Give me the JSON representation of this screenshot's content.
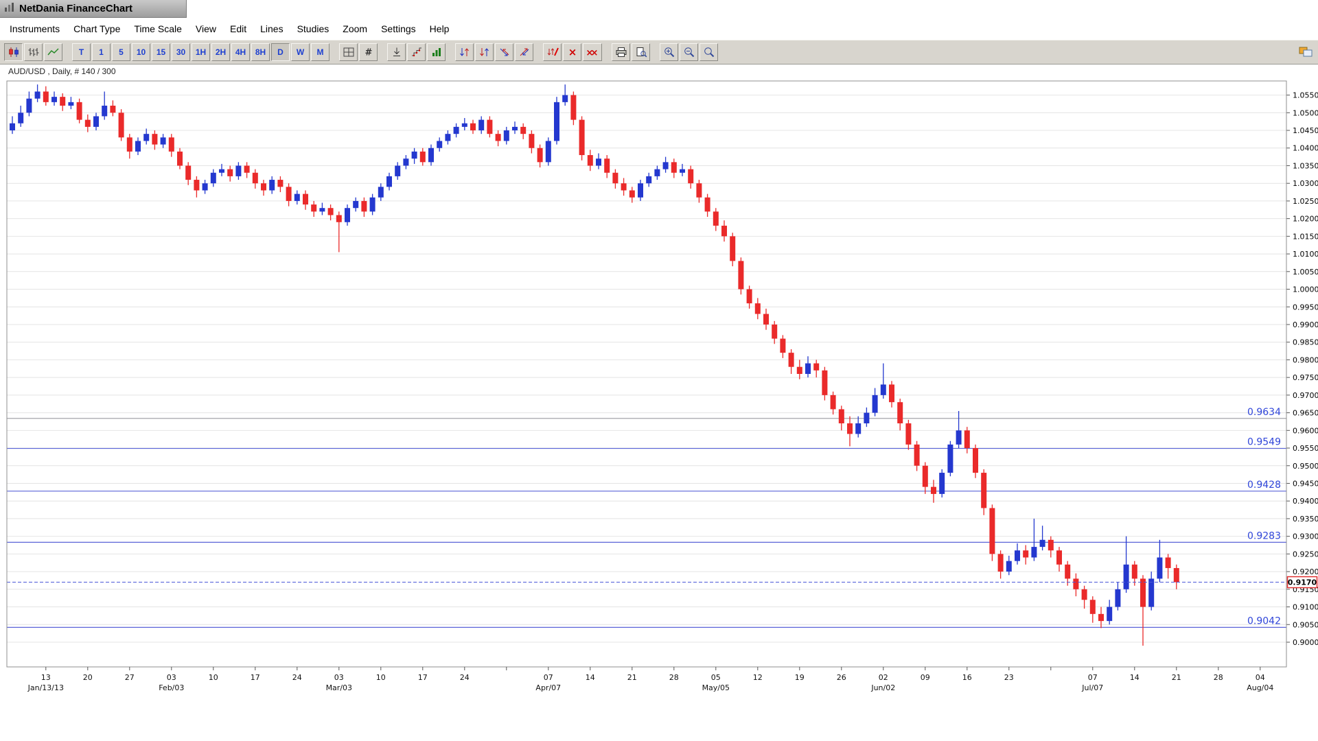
{
  "window": {
    "title": "NetDania FinanceChart"
  },
  "menu": {
    "items": [
      "Instruments",
      "Chart Type",
      "Time Scale",
      "View",
      "Edit",
      "Lines",
      "Studies",
      "Zoom",
      "Settings",
      "Help"
    ]
  },
  "toolbar": {
    "buttons": [
      {
        "name": "candlestick-chart-icon",
        "selected": true
      },
      {
        "name": "ohlc-bars-icon"
      },
      {
        "name": "line-chart-icon"
      },
      {
        "name": "timeframe-T-button",
        "label": "T",
        "gap": true
      },
      {
        "name": "timeframe-1-button",
        "label": "1"
      },
      {
        "name": "timeframe-5-button",
        "label": "5"
      },
      {
        "name": "timeframe-10-button",
        "label": "10"
      },
      {
        "name": "timeframe-15-button",
        "label": "15"
      },
      {
        "name": "timeframe-30-button",
        "label": "30"
      },
      {
        "name": "timeframe-1H-button",
        "label": "1H"
      },
      {
        "name": "timeframe-2H-button",
        "label": "2H"
      },
      {
        "name": "timeframe-4H-button",
        "label": "4H"
      },
      {
        "name": "timeframe-8H-button",
        "label": "8H"
      },
      {
        "name": "timeframe-D-button",
        "label": "D",
        "selected": true
      },
      {
        "name": "timeframe-W-button",
        "label": "W"
      },
      {
        "name": "timeframe-M-button",
        "label": "M"
      },
      {
        "name": "grid-icon",
        "gap": true
      },
      {
        "name": "hash-icon"
      },
      {
        "name": "marker-icon",
        "gap": true
      },
      {
        "name": "steps-icon"
      },
      {
        "name": "studies-bars-icon"
      },
      {
        "name": "arrows-icon-1",
        "gap": true
      },
      {
        "name": "arrows-icon-2"
      },
      {
        "name": "arrows-icon-3"
      },
      {
        "name": "arrows-icon-4"
      },
      {
        "name": "remove-arrows-icon",
        "gap": true
      },
      {
        "name": "delete-cross-icon"
      },
      {
        "name": "delete-all-icon"
      },
      {
        "name": "print-icon",
        "gap": true
      },
      {
        "name": "print-preview-icon"
      },
      {
        "name": "zoom-in-icon",
        "gap": true
      },
      {
        "name": "zoom-out-icon"
      },
      {
        "name": "zoom-reset-icon"
      }
    ]
  },
  "chart": {
    "label": "AUD/USD , Daily, # 140 / 300"
  },
  "chart_data": {
    "type": "candlestick",
    "title": "AUD/USD Daily",
    "symbol": "AUD/USD",
    "interval": "Daily",
    "bars_shown": "# 140 / 300",
    "up_color": "#2438cf",
    "down_color": "#ea2a2a",
    "grid_color": "#e4e4e4",
    "ylim": [
      0.893,
      1.059
    ],
    "y_axis": {
      "tick_step": 0.005,
      "labels": [
        "1.0550",
        "1.0500",
        "1.0450",
        "1.0400",
        "1.0350",
        "1.0300",
        "1.0250",
        "1.0200",
        "1.0150",
        "1.0100",
        "1.0050",
        "1.0000",
        "0.9950",
        "0.9900",
        "0.9850",
        "0.9800",
        "0.9750",
        "0.9700",
        "0.9650",
        "0.9600",
        "0.9550",
        "0.9500",
        "0.9450",
        "0.9400",
        "0.9350",
        "0.9300",
        "0.9250",
        "0.9200",
        "0.9150",
        "0.9100",
        "0.9050",
        "0.9000"
      ]
    },
    "x_axis": {
      "day_labels": [
        {
          "t": "13",
          "i": 4
        },
        {
          "t": "20",
          "i": 9
        },
        {
          "t": "27",
          "i": 14
        },
        {
          "t": "03",
          "i": 19
        },
        {
          "t": "10",
          "i": 24
        },
        {
          "t": "17",
          "i": 29
        },
        {
          "t": "24",
          "i": 34
        },
        {
          "t": "03",
          "i": 39
        },
        {
          "t": "10",
          "i": 44
        },
        {
          "t": "17",
          "i": 49
        },
        {
          "t": "24",
          "i": 54
        },
        {
          "t": "07",
          "i": 64
        },
        {
          "t": "14",
          "i": 69
        },
        {
          "t": "21",
          "i": 74
        },
        {
          "t": "28",
          "i": 79
        },
        {
          "t": "05",
          "i": 84
        },
        {
          "t": "12",
          "i": 89
        },
        {
          "t": "19",
          "i": 94
        },
        {
          "t": "26",
          "i": 99
        },
        {
          "t": "02",
          "i": 104
        },
        {
          "t": "09",
          "i": 109
        },
        {
          "t": "16",
          "i": 114
        },
        {
          "t": "23",
          "i": 119
        },
        {
          "t": "07",
          "i": 129
        },
        {
          "t": "14",
          "i": 134
        },
        {
          "t": "21",
          "i": 139
        },
        {
          "t": "28",
          "i": 144
        },
        {
          "t": "04",
          "i": 149
        }
      ],
      "month_labels": [
        {
          "t": "Jan/13/13",
          "i": 4
        },
        {
          "t": "Feb/03",
          "i": 19
        },
        {
          "t": "Mar/03",
          "i": 39
        },
        {
          "t": "Apr/07",
          "i": 64
        },
        {
          "t": "May/05",
          "i": 84
        },
        {
          "t": "Jun/02",
          "i": 104
        },
        {
          "t": "Jul/07",
          "i": 129
        },
        {
          "t": "Aug/04",
          "i": 149
        }
      ]
    },
    "support_lines": [
      {
        "value": 0.9634,
        "label": "0.9634",
        "line_color": "#9a9aa0",
        "label_color": "#2f45d9"
      },
      {
        "value": 0.9549,
        "label": "0.9549",
        "line_color": "#5a63d8",
        "label_color": "#2f45d9"
      },
      {
        "value": 0.9428,
        "label": "0.9428",
        "line_color": "#5a63d8",
        "label_color": "#2f45d9"
      },
      {
        "value": 0.9283,
        "label": "0.9283",
        "line_color": "#5a63d8",
        "label_color": "#2f45d9"
      },
      {
        "value": 0.9042,
        "label": "0.9042",
        "line_color": "#5a63d8",
        "label_color": "#2f45d9"
      }
    ],
    "current_price": {
      "value": 0.917,
      "label": "0.9170",
      "line_color": "#4a57d8",
      "tag_border": "#e03030"
    },
    "candles": [
      [
        1.045,
        1.049,
        1.044,
        1.047
      ],
      [
        1.047,
        1.052,
        1.046,
        1.05
      ],
      [
        1.05,
        1.056,
        1.049,
        1.054
      ],
      [
        1.054,
        1.058,
        1.053,
        1.056
      ],
      [
        1.056,
        1.0575,
        1.052,
        1.053
      ],
      [
        1.053,
        1.056,
        1.052,
        1.0545
      ],
      [
        1.0545,
        1.0555,
        1.0505,
        1.052
      ],
      [
        1.052,
        1.0545,
        1.051,
        1.053
      ],
      [
        1.053,
        1.054,
        1.047,
        1.048
      ],
      [
        1.048,
        1.0495,
        1.0445,
        1.046
      ],
      [
        1.046,
        1.05,
        1.045,
        1.049
      ],
      [
        1.049,
        1.056,
        1.048,
        1.052
      ],
      [
        1.052,
        1.0535,
        1.049,
        1.05
      ],
      [
        1.05,
        1.051,
        1.042,
        1.043
      ],
      [
        1.043,
        1.044,
        1.037,
        1.039
      ],
      [
        1.039,
        1.043,
        1.038,
        1.042
      ],
      [
        1.042,
        1.0455,
        1.041,
        1.044
      ],
      [
        1.044,
        1.045,
        1.0395,
        1.041
      ],
      [
        1.041,
        1.044,
        1.04,
        1.043
      ],
      [
        1.043,
        1.044,
        1.0375,
        1.039
      ],
      [
        1.039,
        1.04,
        1.034,
        1.035
      ],
      [
        1.035,
        1.036,
        1.0295,
        1.031
      ],
      [
        1.031,
        1.032,
        1.026,
        1.028
      ],
      [
        1.028,
        1.031,
        1.027,
        1.03
      ],
      [
        1.03,
        1.034,
        1.029,
        1.033
      ],
      [
        1.033,
        1.0355,
        1.032,
        1.034
      ],
      [
        1.034,
        1.035,
        1.0305,
        1.032
      ],
      [
        1.032,
        1.036,
        1.031,
        1.035
      ],
      [
        1.035,
        1.036,
        1.0315,
        1.033
      ],
      [
        1.033,
        1.034,
        1.0285,
        1.03
      ],
      [
        1.03,
        1.031,
        1.0265,
        1.028
      ],
      [
        1.028,
        1.032,
        1.027,
        1.031
      ],
      [
        1.031,
        1.032,
        1.0275,
        1.029
      ],
      [
        1.029,
        1.03,
        1.0235,
        1.025
      ],
      [
        1.025,
        1.028,
        1.024,
        1.027
      ],
      [
        1.027,
        1.028,
        1.0225,
        1.024
      ],
      [
        1.024,
        1.025,
        1.0205,
        1.022
      ],
      [
        1.022,
        1.0245,
        1.021,
        1.023
      ],
      [
        1.023,
        1.024,
        1.0195,
        1.021
      ],
      [
        1.021,
        1.022,
        1.0105,
        1.019
      ],
      [
        1.019,
        1.024,
        1.018,
        1.023
      ],
      [
        1.023,
        1.026,
        1.022,
        1.025
      ],
      [
        1.025,
        1.026,
        1.0205,
        1.022
      ],
      [
        1.022,
        1.027,
        1.021,
        1.026
      ],
      [
        1.026,
        1.03,
        1.025,
        1.029
      ],
      [
        1.029,
        1.033,
        1.028,
        1.032
      ],
      [
        1.032,
        1.036,
        1.031,
        1.035
      ],
      [
        1.035,
        1.038,
        1.034,
        1.037
      ],
      [
        1.037,
        1.04,
        1.0355,
        1.039
      ],
      [
        1.039,
        1.04,
        1.035,
        1.036
      ],
      [
        1.036,
        1.041,
        1.035,
        1.04
      ],
      [
        1.04,
        1.043,
        1.039,
        1.042
      ],
      [
        1.042,
        1.045,
        1.041,
        1.044
      ],
      [
        1.044,
        1.047,
        1.043,
        1.046
      ],
      [
        1.046,
        1.0485,
        1.045,
        1.047
      ],
      [
        1.047,
        1.048,
        1.044,
        1.045
      ],
      [
        1.045,
        1.049,
        1.044,
        1.048
      ],
      [
        1.048,
        1.049,
        1.043,
        1.044
      ],
      [
        1.044,
        1.045,
        1.0405,
        1.042
      ],
      [
        1.042,
        1.046,
        1.041,
        1.045
      ],
      [
        1.045,
        1.0475,
        1.044,
        1.046
      ],
      [
        1.046,
        1.047,
        1.0425,
        1.044
      ],
      [
        1.044,
        1.045,
        1.0385,
        1.04
      ],
      [
        1.04,
        1.041,
        1.0345,
        1.036
      ],
      [
        1.036,
        1.043,
        1.035,
        1.042
      ],
      [
        1.042,
        1.0545,
        1.041,
        1.053
      ],
      [
        1.053,
        1.058,
        1.052,
        1.055
      ],
      [
        1.055,
        1.056,
        1.0465,
        1.048
      ],
      [
        1.048,
        1.049,
        1.0365,
        1.038
      ],
      [
        1.038,
        1.0395,
        1.0335,
        1.035
      ],
      [
        1.035,
        1.0385,
        1.034,
        1.037
      ],
      [
        1.037,
        1.038,
        1.0315,
        1.033
      ],
      [
        1.033,
        1.034,
        1.0285,
        1.03
      ],
      [
        1.03,
        1.0315,
        1.0265,
        1.028
      ],
      [
        1.028,
        1.029,
        1.0245,
        1.026
      ],
      [
        1.026,
        1.031,
        1.025,
        1.03
      ],
      [
        1.03,
        1.033,
        1.029,
        1.032
      ],
      [
        1.032,
        1.035,
        1.031,
        1.034
      ],
      [
        1.034,
        1.0375,
        1.033,
        1.036
      ],
      [
        1.036,
        1.037,
        1.0315,
        1.033
      ],
      [
        1.033,
        1.0355,
        1.032,
        1.034
      ],
      [
        1.034,
        1.035,
        1.0285,
        1.03
      ],
      [
        1.03,
        1.031,
        1.0245,
        1.026
      ],
      [
        1.026,
        1.027,
        1.0205,
        1.022
      ],
      [
        1.022,
        1.023,
        1.0165,
        1.018
      ],
      [
        1.018,
        1.0195,
        1.0135,
        1.015
      ],
      [
        1.015,
        1.016,
        1.0065,
        1.008
      ],
      [
        1.008,
        1.009,
        0.9985,
        1.0
      ],
      [
        1.0,
        1.001,
        0.9945,
        0.996
      ],
      [
        0.996,
        0.9975,
        0.9915,
        0.993
      ],
      [
        0.993,
        0.9945,
        0.9885,
        0.99
      ],
      [
        0.99,
        0.991,
        0.9845,
        0.986
      ],
      [
        0.986,
        0.987,
        0.9805,
        0.982
      ],
      [
        0.982,
        0.983,
        0.976,
        0.978
      ],
      [
        0.978,
        0.98,
        0.9745,
        0.976
      ],
      [
        0.976,
        0.981,
        0.975,
        0.979
      ],
      [
        0.979,
        0.98,
        0.975,
        0.977
      ],
      [
        0.977,
        0.978,
        0.9685,
        0.97
      ],
      [
        0.97,
        0.971,
        0.9645,
        0.966
      ],
      [
        0.966,
        0.967,
        0.96,
        0.962
      ],
      [
        0.962,
        0.964,
        0.9555,
        0.959
      ],
      [
        0.959,
        0.964,
        0.958,
        0.962
      ],
      [
        0.962,
        0.9665,
        0.961,
        0.965
      ],
      [
        0.965,
        0.972,
        0.964,
        0.97
      ],
      [
        0.97,
        0.979,
        0.969,
        0.973
      ],
      [
        0.973,
        0.974,
        0.9665,
        0.968
      ],
      [
        0.968,
        0.969,
        0.96,
        0.962
      ],
      [
        0.962,
        0.963,
        0.9545,
        0.956
      ],
      [
        0.956,
        0.957,
        0.9485,
        0.95
      ],
      [
        0.95,
        0.951,
        0.942,
        0.944
      ],
      [
        0.944,
        0.946,
        0.9395,
        0.942
      ],
      [
        0.942,
        0.949,
        0.941,
        0.948
      ],
      [
        0.948,
        0.957,
        0.947,
        0.956
      ],
      [
        0.956,
        0.9655,
        0.955,
        0.96
      ],
      [
        0.96,
        0.961,
        0.9535,
        0.955
      ],
      [
        0.955,
        0.956,
        0.9465,
        0.948
      ],
      [
        0.948,
        0.949,
        0.936,
        0.938
      ],
      [
        0.938,
        0.939,
        0.923,
        0.925
      ],
      [
        0.925,
        0.926,
        0.918,
        0.92
      ],
      [
        0.92,
        0.9245,
        0.919,
        0.923
      ],
      [
        0.923,
        0.928,
        0.922,
        0.926
      ],
      [
        0.926,
        0.9275,
        0.922,
        0.924
      ],
      [
        0.924,
        0.935,
        0.923,
        0.927
      ],
      [
        0.927,
        0.933,
        0.926,
        0.929
      ],
      [
        0.929,
        0.93,
        0.924,
        0.926
      ],
      [
        0.926,
        0.927,
        0.92,
        0.922
      ],
      [
        0.922,
        0.923,
        0.916,
        0.918
      ],
      [
        0.918,
        0.9195,
        0.913,
        0.915
      ],
      [
        0.915,
        0.916,
        0.9095,
        0.912
      ],
      [
        0.912,
        0.913,
        0.9055,
        0.908
      ],
      [
        0.908,
        0.91,
        0.904,
        0.906
      ],
      [
        0.906,
        0.912,
        0.905,
        0.91
      ],
      [
        0.91,
        0.917,
        0.909,
        0.915
      ],
      [
        0.915,
        0.93,
        0.914,
        0.922
      ],
      [
        0.922,
        0.923,
        0.916,
        0.918
      ],
      [
        0.918,
        0.919,
        0.899,
        0.91
      ],
      [
        0.91,
        0.92,
        0.909,
        0.918
      ],
      [
        0.918,
        0.929,
        0.917,
        0.924
      ],
      [
        0.924,
        0.925,
        0.918,
        0.921
      ],
      [
        0.921,
        0.922,
        0.915,
        0.917
      ]
    ]
  }
}
